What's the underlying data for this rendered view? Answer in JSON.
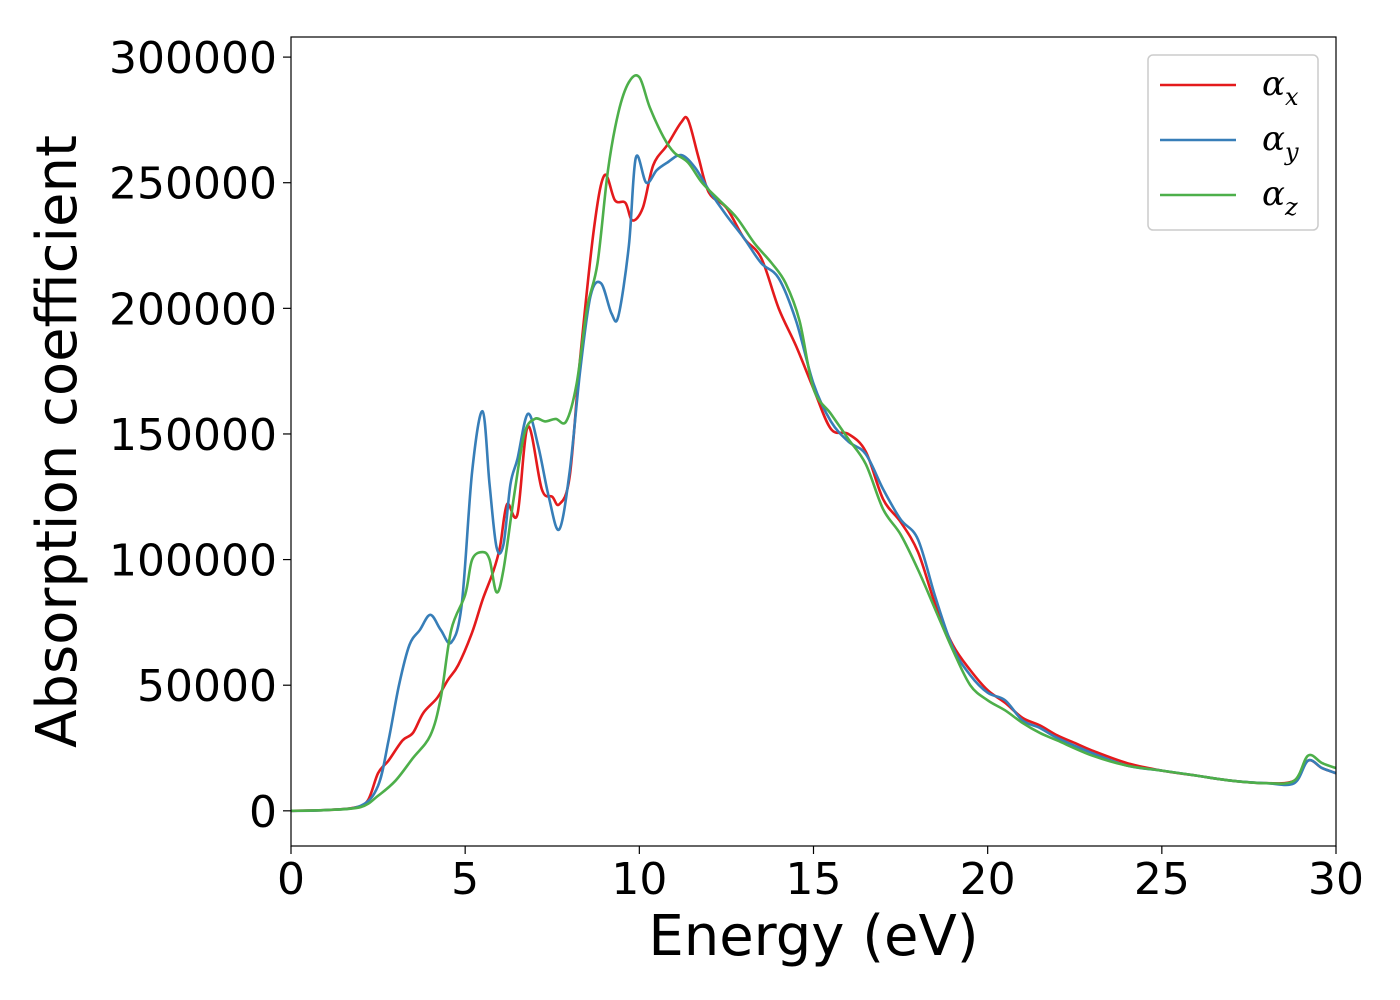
{
  "chart_data": {
    "type": "line",
    "xlabel": "Energy (eV)",
    "ylabel": "Absorption coefficient",
    "xlim": [
      0,
      30
    ],
    "ylim": [
      -14000,
      308000
    ],
    "xticks": [
      0,
      5,
      10,
      15,
      20,
      25,
      30
    ],
    "xtick_labels": [
      "0",
      "5",
      "10",
      "15",
      "20",
      "25",
      "30"
    ],
    "yticks": [
      0,
      50000,
      100000,
      150000,
      200000,
      250000,
      300000
    ],
    "ytick_labels": [
      "0",
      "50000",
      "100000",
      "150000",
      "200000",
      "250000",
      "300000"
    ],
    "grid": false,
    "legend_position": "top-right",
    "series": [
      {
        "name": "α_x",
        "label_main": "α",
        "label_sub": "x",
        "color": "#e41a1c",
        "points": [
          [
            0,
            0
          ],
          [
            1,
            300
          ],
          [
            1.8,
            1200
          ],
          [
            2.2,
            4000
          ],
          [
            2.5,
            15000
          ],
          [
            2.8,
            20000
          ],
          [
            3.2,
            28000
          ],
          [
            3.5,
            31000
          ],
          [
            3.8,
            39000
          ],
          [
            4.2,
            45000
          ],
          [
            4.5,
            52000
          ],
          [
            4.8,
            58000
          ],
          [
            5.2,
            71000
          ],
          [
            5.5,
            84000
          ],
          [
            5.8,
            95000
          ],
          [
            6.0,
            105000
          ],
          [
            6.2,
            122000
          ],
          [
            6.5,
            118000
          ],
          [
            6.8,
            153000
          ],
          [
            7.2,
            128000
          ],
          [
            7.5,
            125000
          ],
          [
            7.7,
            122000
          ],
          [
            8.0,
            133000
          ],
          [
            8.3,
            180000
          ],
          [
            8.7,
            232000
          ],
          [
            9.0,
            253000
          ],
          [
            9.3,
            243000
          ],
          [
            9.6,
            242000
          ],
          [
            9.8,
            235000
          ],
          [
            10.1,
            240000
          ],
          [
            10.4,
            257000
          ],
          [
            10.8,
            265000
          ],
          [
            11.2,
            274000
          ],
          [
            11.4,
            275000
          ],
          [
            11.7,
            260000
          ],
          [
            12.0,
            246000
          ],
          [
            12.5,
            240000
          ],
          [
            13.0,
            228000
          ],
          [
            13.5,
            220000
          ],
          [
            14.0,
            200000
          ],
          [
            14.5,
            185000
          ],
          [
            15.0,
            168000
          ],
          [
            15.5,
            152000
          ],
          [
            16.0,
            150000
          ],
          [
            16.5,
            143000
          ],
          [
            17.0,
            124000
          ],
          [
            17.5,
            115000
          ],
          [
            18.0,
            103000
          ],
          [
            18.5,
            82000
          ],
          [
            19.0,
            66000
          ],
          [
            19.5,
            56000
          ],
          [
            20.0,
            48000
          ],
          [
            20.5,
            43000
          ],
          [
            21.0,
            37000
          ],
          [
            21.5,
            34000
          ],
          [
            22.0,
            30000
          ],
          [
            22.5,
            27000
          ],
          [
            23.0,
            24000
          ],
          [
            24.0,
            19000
          ],
          [
            25.0,
            16000
          ],
          [
            26.0,
            14000
          ],
          [
            27.0,
            12000
          ],
          [
            28.0,
            11000
          ],
          [
            28.8,
            12000
          ],
          [
            29.2,
            20000
          ],
          [
            29.6,
            17000
          ],
          [
            30.0,
            15000
          ]
        ]
      },
      {
        "name": "α_y",
        "label_main": "α",
        "label_sub": "y",
        "color": "#377eb8",
        "points": [
          [
            0,
            0
          ],
          [
            1,
            300
          ],
          [
            2.0,
            2000
          ],
          [
            2.5,
            10000
          ],
          [
            2.8,
            28000
          ],
          [
            3.1,
            50000
          ],
          [
            3.4,
            66000
          ],
          [
            3.7,
            72000
          ],
          [
            4.0,
            78000
          ],
          [
            4.3,
            72000
          ],
          [
            4.6,
            67000
          ],
          [
            4.9,
            82000
          ],
          [
            5.2,
            135000
          ],
          [
            5.5,
            159000
          ],
          [
            5.7,
            130000
          ],
          [
            5.9,
            105000
          ],
          [
            6.1,
            106000
          ],
          [
            6.3,
            130000
          ],
          [
            6.5,
            140000
          ],
          [
            6.8,
            158000
          ],
          [
            7.1,
            145000
          ],
          [
            7.4,
            125000
          ],
          [
            7.7,
            112000
          ],
          [
            8.0,
            135000
          ],
          [
            8.3,
            175000
          ],
          [
            8.6,
            205000
          ],
          [
            8.9,
            210000
          ],
          [
            9.2,
            198000
          ],
          [
            9.4,
            197000
          ],
          [
            9.7,
            225000
          ],
          [
            9.9,
            260000
          ],
          [
            10.2,
            250000
          ],
          [
            10.5,
            255000
          ],
          [
            10.8,
            258000
          ],
          [
            11.2,
            261000
          ],
          [
            11.6,
            256000
          ],
          [
            12.0,
            247000
          ],
          [
            12.5,
            237000
          ],
          [
            13.0,
            228000
          ],
          [
            13.5,
            218000
          ],
          [
            14.0,
            212000
          ],
          [
            14.5,
            195000
          ],
          [
            15.0,
            170000
          ],
          [
            15.5,
            155000
          ],
          [
            16.0,
            147000
          ],
          [
            16.5,
            142000
          ],
          [
            17.0,
            128000
          ],
          [
            17.5,
            116000
          ],
          [
            18.0,
            108000
          ],
          [
            18.5,
            85000
          ],
          [
            19.0,
            65000
          ],
          [
            19.5,
            54000
          ],
          [
            20.0,
            47000
          ],
          [
            20.5,
            44000
          ],
          [
            21.0,
            36000
          ],
          [
            21.5,
            33000
          ],
          [
            22.0,
            29000
          ],
          [
            23.0,
            23000
          ],
          [
            24.0,
            18000
          ],
          [
            25.0,
            16000
          ],
          [
            26.0,
            14000
          ],
          [
            27.0,
            12000
          ],
          [
            28.0,
            11000
          ],
          [
            28.8,
            11000
          ],
          [
            29.2,
            20000
          ],
          [
            29.6,
            17000
          ],
          [
            30.0,
            15000
          ]
        ]
      },
      {
        "name": "α_z",
        "label_main": "α",
        "label_sub": "z",
        "color": "#4daf4a",
        "points": [
          [
            0,
            0
          ],
          [
            1,
            300
          ],
          [
            2.0,
            1500
          ],
          [
            2.5,
            6000
          ],
          [
            3.0,
            12000
          ],
          [
            3.5,
            21000
          ],
          [
            4.0,
            30000
          ],
          [
            4.3,
            45000
          ],
          [
            4.6,
            72000
          ],
          [
            5.0,
            86000
          ],
          [
            5.2,
            100000
          ],
          [
            5.5,
            103000
          ],
          [
            5.7,
            100000
          ],
          [
            5.9,
            87000
          ],
          [
            6.1,
            96000
          ],
          [
            6.4,
            125000
          ],
          [
            6.7,
            150000
          ],
          [
            7.0,
            156000
          ],
          [
            7.3,
            155000
          ],
          [
            7.6,
            156000
          ],
          [
            7.9,
            155000
          ],
          [
            8.2,
            170000
          ],
          [
            8.5,
            200000
          ],
          [
            8.8,
            218000
          ],
          [
            9.1,
            255000
          ],
          [
            9.4,
            278000
          ],
          [
            9.7,
            290000
          ],
          [
            10.0,
            292000
          ],
          [
            10.3,
            280000
          ],
          [
            10.7,
            268000
          ],
          [
            11.0,
            262000
          ],
          [
            11.4,
            258000
          ],
          [
            11.8,
            250000
          ],
          [
            12.3,
            243000
          ],
          [
            12.8,
            236000
          ],
          [
            13.3,
            226000
          ],
          [
            13.8,
            218000
          ],
          [
            14.2,
            210000
          ],
          [
            14.6,
            195000
          ],
          [
            15.0,
            168000
          ],
          [
            15.5,
            158000
          ],
          [
            16.0,
            148000
          ],
          [
            16.5,
            138000
          ],
          [
            17.0,
            120000
          ],
          [
            17.5,
            110000
          ],
          [
            18.0,
            96000
          ],
          [
            18.5,
            80000
          ],
          [
            19.0,
            64000
          ],
          [
            19.5,
            50000
          ],
          [
            20.0,
            44000
          ],
          [
            20.5,
            40000
          ],
          [
            21.0,
            35000
          ],
          [
            21.5,
            31000
          ],
          [
            22.0,
            28000
          ],
          [
            23.0,
            22000
          ],
          [
            24.0,
            18000
          ],
          [
            25.0,
            16000
          ],
          [
            26.0,
            14000
          ],
          [
            27.0,
            12000
          ],
          [
            28.0,
            11000
          ],
          [
            28.8,
            12000
          ],
          [
            29.2,
            22000
          ],
          [
            29.6,
            19000
          ],
          [
            30.0,
            17000
          ]
        ]
      }
    ]
  }
}
